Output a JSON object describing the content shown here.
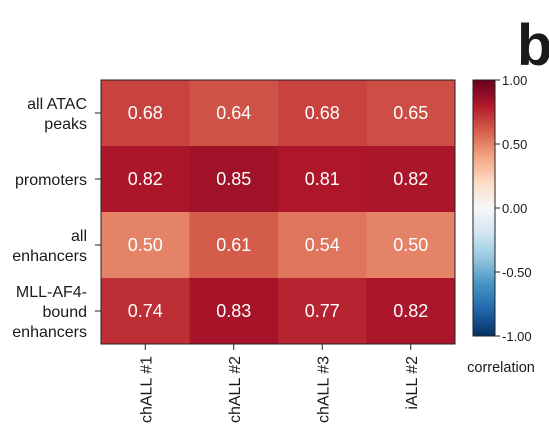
{
  "panel_label": "b",
  "chart_data": {
    "type": "heatmap",
    "rows": [
      [
        "all ATAC",
        "peaks"
      ],
      [
        "promoters"
      ],
      [
        "all",
        "enhancers"
      ],
      [
        "MLL-AF4-",
        "bound",
        "enhancers"
      ]
    ],
    "columns": [
      "chALL #1",
      "chALL #2",
      "chALL #3",
      "iALL #2"
    ],
    "values": [
      [
        0.68,
        0.64,
        0.68,
        0.65
      ],
      [
        0.82,
        0.85,
        0.81,
        0.82
      ],
      [
        0.5,
        0.61,
        0.54,
        0.5
      ],
      [
        0.74,
        0.83,
        0.77,
        0.82
      ]
    ],
    "value_labels": [
      [
        "0.68",
        "0.64",
        "0.68",
        "0.65"
      ],
      [
        "0.82",
        "0.85",
        "0.81",
        "0.82"
      ],
      [
        "0.50",
        "0.61",
        "0.54",
        "0.50"
      ],
      [
        "0.74",
        "0.83",
        "0.77",
        "0.82"
      ]
    ],
    "colorbar": {
      "label": "correlation",
      "min": -1.0,
      "max": 1.0,
      "ticks": [
        1.0,
        0.5,
        0.0,
        -0.5,
        -1.0
      ],
      "tick_labels": [
        "1.00",
        "0.50",
        "0.00",
        "-0.50",
        "-1.00"
      ],
      "colormap": "RdBu_r",
      "colors": [
        "#053061",
        "#2166ac",
        "#4393c3",
        "#92c5de",
        "#d1e5f0",
        "#f7f7f7",
        "#fddbc7",
        "#f4a582",
        "#d6604d",
        "#b2182b",
        "#67001f"
      ]
    },
    "grid": false
  }
}
